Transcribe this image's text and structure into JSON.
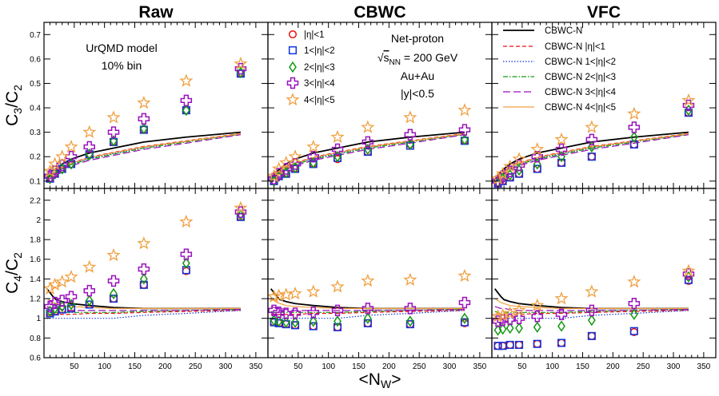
{
  "chart_data": {
    "type": "scatter",
    "title": "",
    "columns": [
      {
        "key": "raw",
        "title": "Raw"
      },
      {
        "key": "cbwc",
        "title": "CBWC"
      },
      {
        "key": "vfc",
        "title": "VFC"
      }
    ],
    "xlabel_main": "<N",
    "xlabel_sub": "W",
    "xlabel_close": ">",
    "xlim": [
      0,
      370
    ],
    "xticks": [
      "50",
      "100",
      "150",
      "200",
      "250",
      "300",
      "350"
    ],
    "rows": [
      {
        "key": "c3c2",
        "ylabel_main": "C",
        "ylabel_sub1": "3",
        "ylabel_sep": "/C",
        "ylabel_sub2": "2",
        "ylim": [
          0.07,
          0.75
        ],
        "yticks": [
          "0.1",
          "0.2",
          "0.3",
          "0.4",
          "0.5",
          "0.6",
          "0.7"
        ]
      },
      {
        "key": "c4c2",
        "ylabel_main": "C",
        "ylabel_sub1": "4",
        "ylabel_sep": "/C",
        "ylabel_sub2": "2",
        "ylim": [
          0.6,
          2.32
        ],
        "yticks": [
          "0.6",
          "0.8",
          "1",
          "1.2",
          "1.4",
          "1.6",
          "1.8",
          "2",
          "2.2"
        ]
      }
    ],
    "annotations": {
      "model": "UrQMD model",
      "bin": "10% bin",
      "netproton": "Net-proton",
      "energy_sqrt": "√",
      "energy_s": "s",
      "energy_sub": "NN",
      "energy_val": " = 200 GeV",
      "system": "Au+Au",
      "rapidity": "|y|<0.5"
    },
    "marker_legend": [
      {
        "name": "|η|<1",
        "marker": "circle",
        "color": "#ee1111"
      },
      {
        "name": "1<|η|<2",
        "marker": "square",
        "color": "#1133dd"
      },
      {
        "name": "2<|η|<3",
        "marker": "diamond",
        "color": "#119911"
      },
      {
        "name": "3<|η|<4",
        "marker": "cross",
        "color": "#9911bb"
      },
      {
        "name": "4<|η|<5",
        "marker": "star",
        "color": "#f0a040"
      }
    ],
    "line_legend": [
      {
        "name": "CBWC-N",
        "color": "#000000",
        "dash": "solid"
      },
      {
        "name": "CBWC-N |η|<1",
        "color": "#ee1111",
        "dash": "dash"
      },
      {
        "name": "CBWC-N 1<|η|<2",
        "color": "#1133dd",
        "dash": "dot"
      },
      {
        "name": "CBWC-N 2<|η|<3",
        "color": "#119911",
        "dash": "dashdot"
      },
      {
        "name": "CBWC-N 3<|η|<4",
        "color": "#9911bb",
        "dash": "longdash"
      },
      {
        "name": "CBWC-N 4<|η|<5",
        "color": "#f0a040",
        "dash": "solid"
      }
    ],
    "x": [
      5,
      10,
      15,
      20,
      30,
      45,
      75,
      115,
      165,
      235,
      325
    ],
    "lines": {
      "c3c2": {
        "x": [
          5,
          10,
          15,
          20,
          30,
          45,
          75,
          115,
          165,
          235,
          325
        ],
        "series": [
          {
            "name": "CBWC-N",
            "values": [
              0.105,
              0.125,
              0.14,
              0.15,
              0.17,
              0.19,
              0.215,
              0.235,
              0.26,
              0.28,
              0.3
            ]
          },
          {
            "name": "CBWC-N |η|<1",
            "values": [
              0.1,
              0.118,
              0.132,
              0.142,
              0.158,
              0.175,
              0.198,
              0.218,
              0.242,
              0.265,
              0.295
            ]
          },
          {
            "name": "CBWC-N 1<|η|<2",
            "values": [
              0.098,
              0.115,
              0.128,
              0.138,
              0.153,
              0.17,
              0.193,
              0.213,
              0.238,
              0.262,
              0.293
            ]
          },
          {
            "name": "CBWC-N 2<|η|<3",
            "values": [
              0.097,
              0.113,
              0.126,
              0.136,
              0.151,
              0.168,
              0.19,
              0.21,
              0.235,
              0.26,
              0.292
            ]
          },
          {
            "name": "CBWC-N 3<|η|<4",
            "values": [
              0.095,
              0.11,
              0.122,
              0.132,
              0.147,
              0.163,
              0.185,
              0.205,
              0.23,
              0.255,
              0.29
            ]
          },
          {
            "name": "CBWC-N 4<|η|<5",
            "values": [
              0.1,
              0.117,
              0.13,
              0.14,
              0.156,
              0.173,
              0.196,
              0.216,
              0.24,
              0.263,
              0.294
            ]
          }
        ]
      },
      "c4c2": {
        "x": [
          5,
          10,
          15,
          20,
          30,
          45,
          75,
          115,
          165,
          235,
          325
        ],
        "series": [
          {
            "name": "CBWC-N",
            "values": [
              1.3,
              1.26,
              1.22,
              1.19,
              1.17,
              1.15,
              1.13,
              1.11,
              1.1,
              1.1,
              1.1
            ]
          },
          {
            "name": "CBWC-N |η|<1",
            "values": [
              1.04,
              1.04,
              1.04,
              1.04,
              1.04,
              1.04,
              1.05,
              1.05,
              1.06,
              1.07,
              1.08
            ]
          },
          {
            "name": "CBWC-N 1<|η|<2",
            "values": [
              1.0,
              1.0,
              1.0,
              1.0,
              1.0,
              1.0,
              1.0,
              1.0,
              1.03,
              1.05,
              1.08
            ]
          },
          {
            "name": "CBWC-N 2<|η|<3",
            "values": [
              1.07,
              1.06,
              1.06,
              1.06,
              1.06,
              1.06,
              1.06,
              1.06,
              1.07,
              1.08,
              1.09
            ]
          },
          {
            "name": "CBWC-N 3<|η|<4",
            "values": [
              1.12,
              1.11,
              1.1,
              1.1,
              1.09,
              1.08,
              1.08,
              1.08,
              1.08,
              1.08,
              1.09
            ]
          },
          {
            "name": "CBWC-N 4<|η|<5",
            "values": [
              1.2,
              1.18,
              1.16,
              1.15,
              1.13,
              1.12,
              1.11,
              1.1,
              1.1,
              1.1,
              1.1
            ]
          }
        ]
      }
    },
    "points": {
      "x": [
        10,
        18,
        30,
        45,
        75,
        115,
        165,
        235,
        325
      ],
      "raw": {
        "c3c2": [
          {
            "name": "|η|<1",
            "values": [
              0.11,
              0.13,
              0.15,
              0.17,
              0.21,
              0.26,
              0.31,
              0.39,
              0.54
            ]
          },
          {
            "name": "1<|η|<2",
            "values": [
              0.11,
              0.13,
              0.15,
              0.17,
              0.21,
              0.26,
              0.31,
              0.39,
              0.54
            ]
          },
          {
            "name": "2<|η|<3",
            "values": [
              0.11,
              0.13,
              0.15,
              0.17,
              0.21,
              0.265,
              0.315,
              0.39,
              0.545
            ]
          },
          {
            "name": "3<|η|<4",
            "values": [
              0.12,
              0.14,
              0.165,
              0.2,
              0.24,
              0.3,
              0.355,
              0.43,
              0.56
            ]
          },
          {
            "name": "4<|η|<5",
            "values": [
              0.14,
              0.17,
              0.2,
              0.24,
              0.3,
              0.36,
              0.42,
              0.51,
              0.58
            ]
          }
        ],
        "c4c2": [
          {
            "name": "|η|<1",
            "values": [
              1.05,
              1.07,
              1.09,
              1.1,
              1.14,
              1.2,
              1.34,
              1.48,
              2.03
            ]
          },
          {
            "name": "1<|η|<2",
            "values": [
              1.05,
              1.07,
              1.09,
              1.1,
              1.14,
              1.2,
              1.34,
              1.49,
              2.03
            ]
          },
          {
            "name": "2<|η|<3",
            "values": [
              1.07,
              1.1,
              1.12,
              1.14,
              1.18,
              1.25,
              1.4,
              1.56,
              2.05
            ]
          },
          {
            "name": "3<|η|<4",
            "values": [
              1.12,
              1.16,
              1.18,
              1.22,
              1.28,
              1.38,
              1.5,
              1.65,
              2.08
            ]
          },
          {
            "name": "4<|η|<5",
            "values": [
              1.3,
              1.34,
              1.37,
              1.42,
              1.52,
              1.64,
              1.76,
              1.98,
              2.12
            ]
          }
        ]
      },
      "cbwc": {
        "c3c2": [
          {
            "name": "|η|<1",
            "values": [
              0.1,
              0.12,
              0.13,
              0.15,
              0.17,
              0.19,
              0.22,
              0.25,
              0.265
            ]
          },
          {
            "name": "1<|η|<2",
            "values": [
              0.1,
              0.12,
              0.13,
              0.15,
              0.17,
              0.195,
              0.22,
              0.245,
              0.265
            ]
          },
          {
            "name": "2<|η|<3",
            "values": [
              0.1,
              0.12,
              0.135,
              0.155,
              0.175,
              0.2,
              0.23,
              0.25,
              0.27
            ]
          },
          {
            "name": "3<|η|<4",
            "values": [
              0.11,
              0.13,
              0.15,
              0.17,
              0.2,
              0.23,
              0.26,
              0.29,
              0.31
            ]
          },
          {
            "name": "4<|η|<5",
            "values": [
              0.12,
              0.15,
              0.175,
              0.2,
              0.24,
              0.28,
              0.32,
              0.36,
              0.39
            ]
          }
        ],
        "c4c2": [
          {
            "name": "|η|<1",
            "values": [
              0.96,
              0.95,
              0.94,
              0.93,
              0.92,
              0.91,
              0.95,
              0.94,
              0.95
            ]
          },
          {
            "name": "1<|η|<2",
            "values": [
              0.96,
              0.95,
              0.94,
              0.93,
              0.92,
              0.91,
              0.95,
              0.94,
              0.96
            ]
          },
          {
            "name": "2<|η|<3",
            "values": [
              0.98,
              0.97,
              0.96,
              0.96,
              0.97,
              0.97,
              1.0,
              0.97,
              1.0
            ]
          },
          {
            "name": "3<|η|<4",
            "values": [
              1.08,
              1.06,
              1.05,
              1.05,
              1.06,
              1.08,
              1.1,
              1.1,
              1.16
            ]
          },
          {
            "name": "4<|η|<5",
            "values": [
              1.22,
              1.23,
              1.24,
              1.25,
              1.27,
              1.32,
              1.38,
              1.39,
              1.43
            ]
          }
        ]
      },
      "vfc": {
        "c3c2": [
          {
            "name": "|η|<1",
            "values": [
              0.09,
              0.1,
              0.115,
              0.13,
              0.15,
              0.175,
              0.2,
              0.25,
              0.38
            ]
          },
          {
            "name": "1<|η|<2",
            "values": [
              0.09,
              0.1,
              0.115,
              0.13,
              0.15,
              0.175,
              0.2,
              0.25,
              0.38
            ]
          },
          {
            "name": "2<|η|<3",
            "values": [
              0.095,
              0.11,
              0.125,
              0.145,
              0.17,
              0.2,
              0.24,
              0.28,
              0.39
            ]
          },
          {
            "name": "3<|η|<4",
            "values": [
              0.1,
              0.12,
              0.14,
              0.165,
              0.2,
              0.23,
              0.27,
              0.32,
              0.41
            ]
          },
          {
            "name": "4<|η|<5",
            "values": [
              0.11,
              0.13,
              0.16,
              0.19,
              0.23,
              0.27,
              0.32,
              0.375,
              0.43
            ]
          }
        ],
        "c4c2": [
          {
            "name": "|η|<1",
            "values": [
              0.72,
              0.72,
              0.73,
              0.73,
              0.74,
              0.75,
              0.82,
              0.86,
              1.38
            ]
          },
          {
            "name": "1<|η|<2",
            "values": [
              0.72,
              0.72,
              0.73,
              0.73,
              0.74,
              0.75,
              0.82,
              0.87,
              1.39
            ]
          },
          {
            "name": "2<|η|<3",
            "values": [
              0.88,
              0.89,
              0.9,
              0.9,
              0.91,
              0.92,
              0.98,
              1.04,
              1.42
            ]
          },
          {
            "name": "3<|η|<4",
            "values": [
              0.97,
              0.98,
              0.99,
              1.0,
              1.02,
              1.04,
              1.08,
              1.15,
              1.45
            ]
          },
          {
            "name": "4<|η|<5",
            "values": [
              1.02,
              1.03,
              1.05,
              1.08,
              1.13,
              1.2,
              1.27,
              1.37,
              1.48
            ]
          }
        ]
      }
    }
  }
}
